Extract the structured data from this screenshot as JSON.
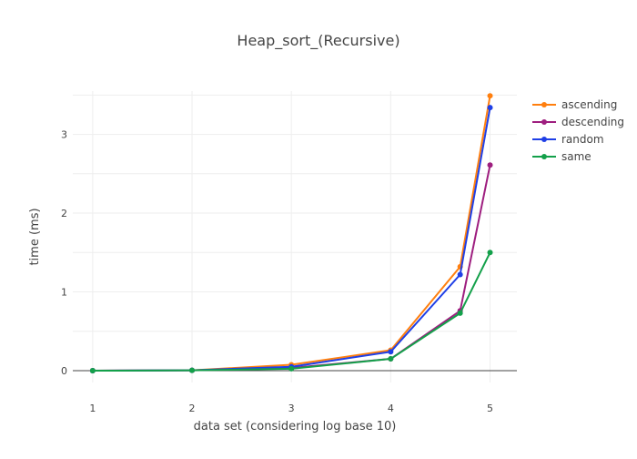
{
  "chart_data": {
    "type": "line",
    "title": "Heap_sort_(Recursive)",
    "xlabel": "data set (considering log base 10)",
    "ylabel": "time (ms)",
    "x": [
      1,
      2,
      3,
      4,
      4.69897,
      5
    ],
    "xlim": [
      0.8,
      5.27
    ],
    "ylim": [
      -0.15,
      3.55
    ],
    "x_ticks": [
      1,
      2,
      3,
      4,
      5
    ],
    "x_tick_labels": [
      "1",
      "2",
      "3",
      "4",
      "5"
    ],
    "y_ticks": [
      0,
      1,
      2,
      3
    ],
    "y_tick_labels": [
      "0",
      "1",
      "2",
      "3"
    ],
    "grid": true,
    "legend_position": "top-right",
    "series": [
      {
        "name": "ascending",
        "color": "#ff7f0e",
        "values": [
          0.0,
          0.005,
          0.075,
          0.26,
          1.32,
          3.49
        ]
      },
      {
        "name": "descending",
        "color": "#9e1e7f",
        "values": [
          0.0,
          0.005,
          0.035,
          0.15,
          0.76,
          2.61
        ]
      },
      {
        "name": "random",
        "color": "#1f3fe6",
        "values": [
          0.0,
          0.005,
          0.05,
          0.24,
          1.22,
          3.34
        ]
      },
      {
        "name": "same",
        "color": "#13a04a",
        "values": [
          0.0,
          0.004,
          0.025,
          0.15,
          0.73,
          1.5
        ]
      }
    ]
  }
}
